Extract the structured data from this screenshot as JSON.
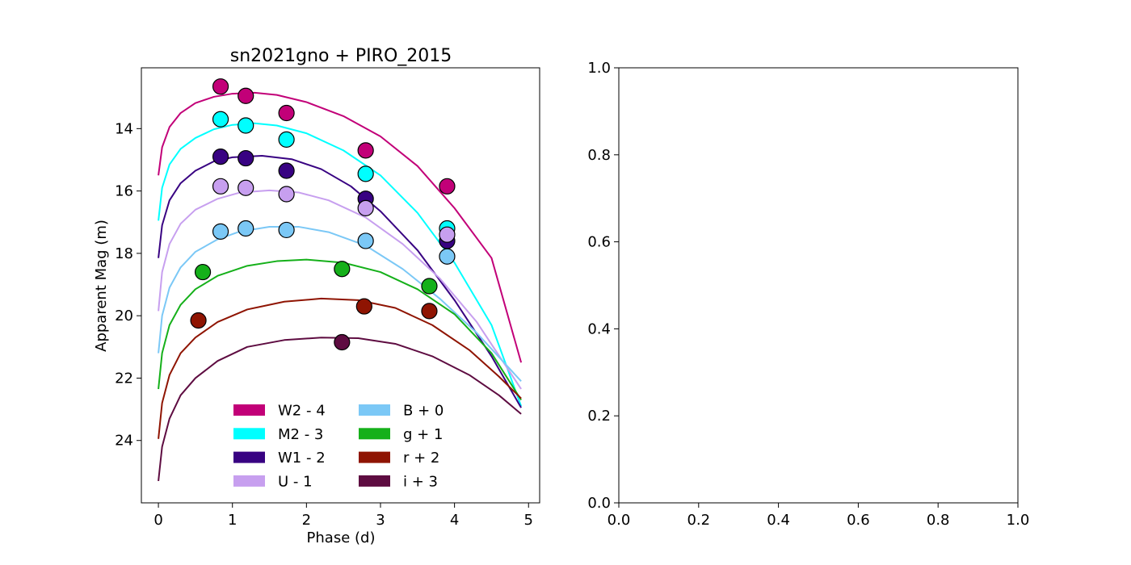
{
  "chart_data": [
    {
      "type": "line+scatter",
      "title": "sn2021gno + PIRO_2015",
      "xlabel": "Phase (d)",
      "ylabel": "Apparent Mag (m)",
      "xlim": [
        -0.23,
        5.15
      ],
      "ylim": [
        26.0,
        12.05
      ],
      "y_inverted": true,
      "xticks": [
        0,
        1,
        2,
        3,
        4,
        5
      ],
      "yticks": [
        14,
        16,
        18,
        20,
        22,
        24
      ],
      "grid": false,
      "legend_position": "lower-center",
      "legend_columns": 2,
      "series": [
        {
          "name": "W2 - 4",
          "color": "#c20078",
          "points": [
            [
              0.84,
              12.65
            ],
            [
              1.18,
              12.95
            ],
            [
              1.73,
              13.5
            ],
            [
              2.8,
              14.7
            ],
            [
              3.9,
              15.85
            ]
          ],
          "curve": [
            [
              0.0,
              15.5
            ],
            [
              0.05,
              14.6
            ],
            [
              0.15,
              13.95
            ],
            [
              0.3,
              13.5
            ],
            [
              0.5,
              13.18
            ],
            [
              0.75,
              12.98
            ],
            [
              1.0,
              12.88
            ],
            [
              1.3,
              12.85
            ],
            [
              1.6,
              12.92
            ],
            [
              2.0,
              13.15
            ],
            [
              2.5,
              13.6
            ],
            [
              3.0,
              14.25
            ],
            [
              3.5,
              15.2
            ],
            [
              4.0,
              16.55
            ],
            [
              4.5,
              18.15
            ],
            [
              4.9,
              21.5
            ]
          ]
        },
        {
          "name": "M2 - 3",
          "color": "#00ffff",
          "points": [
            [
              0.84,
              13.7
            ],
            [
              1.18,
              13.9
            ],
            [
              1.73,
              14.35
            ],
            [
              2.8,
              15.45
            ],
            [
              3.9,
              17.2
            ]
          ],
          "curve": [
            [
              0.0,
              16.95
            ],
            [
              0.05,
              15.9
            ],
            [
              0.15,
              15.15
            ],
            [
              0.3,
              14.65
            ],
            [
              0.5,
              14.3
            ],
            [
              0.75,
              14.02
            ],
            [
              1.0,
              13.88
            ],
            [
              1.3,
              13.83
            ],
            [
              1.6,
              13.9
            ],
            [
              2.0,
              14.15
            ],
            [
              2.5,
              14.7
            ],
            [
              3.0,
              15.5
            ],
            [
              3.5,
              16.7
            ],
            [
              4.0,
              18.3
            ],
            [
              4.5,
              20.3
            ],
            [
              4.9,
              22.9
            ]
          ]
        },
        {
          "name": "W1 - 2",
          "color": "#380282",
          "points": [
            [
              0.84,
              14.9
            ],
            [
              1.18,
              14.95
            ],
            [
              1.73,
              15.35
            ],
            [
              2.8,
              16.25
            ],
            [
              3.9,
              17.6
            ]
          ],
          "curve": [
            [
              0.0,
              18.15
            ],
            [
              0.05,
              17.1
            ],
            [
              0.15,
              16.3
            ],
            [
              0.3,
              15.75
            ],
            [
              0.5,
              15.35
            ],
            [
              0.75,
              15.05
            ],
            [
              1.0,
              14.92
            ],
            [
              1.4,
              14.87
            ],
            [
              1.8,
              14.98
            ],
            [
              2.2,
              15.3
            ],
            [
              2.6,
              15.85
            ],
            [
              3.0,
              16.65
            ],
            [
              3.5,
              17.9
            ],
            [
              4.0,
              19.5
            ],
            [
              4.5,
              21.3
            ],
            [
              4.9,
              22.95
            ]
          ]
        },
        {
          "name": "U - 1",
          "color": "#c79fef",
          "points": [
            [
              0.84,
              15.85
            ],
            [
              1.18,
              15.9
            ],
            [
              1.73,
              16.1
            ],
            [
              2.8,
              16.55
            ],
            [
              3.9,
              17.4
            ]
          ],
          "curve": [
            [
              0.0,
              19.85
            ],
            [
              0.05,
              18.6
            ],
            [
              0.15,
              17.7
            ],
            [
              0.3,
              17.05
            ],
            [
              0.5,
              16.6
            ],
            [
              0.8,
              16.25
            ],
            [
              1.1,
              16.05
            ],
            [
              1.5,
              15.98
            ],
            [
              1.9,
              16.05
            ],
            [
              2.3,
              16.3
            ],
            [
              2.8,
              16.85
            ],
            [
              3.3,
              17.7
            ],
            [
              3.8,
              18.8
            ],
            [
              4.3,
              20.2
            ],
            [
              4.9,
              22.35
            ]
          ]
        },
        {
          "name": "B + 0",
          "color": "#7bc8f6",
          "points": [
            [
              0.84,
              17.3
            ],
            [
              1.18,
              17.2
            ],
            [
              1.73,
              17.25
            ],
            [
              2.8,
              17.6
            ],
            [
              3.9,
              18.1
            ]
          ],
          "curve": [
            [
              0.0,
              21.2
            ],
            [
              0.05,
              20.0
            ],
            [
              0.15,
              19.1
            ],
            [
              0.3,
              18.45
            ],
            [
              0.5,
              17.95
            ],
            [
              0.8,
              17.55
            ],
            [
              1.1,
              17.3
            ],
            [
              1.5,
              17.15
            ],
            [
              1.9,
              17.15
            ],
            [
              2.3,
              17.32
            ],
            [
              2.8,
              17.75
            ],
            [
              3.3,
              18.5
            ],
            [
              3.8,
              19.45
            ],
            [
              4.3,
              20.55
            ],
            [
              4.9,
              22.1
            ]
          ]
        },
        {
          "name": "g + 1",
          "color": "#15b01a",
          "points": [
            [
              0.6,
              18.6
            ],
            [
              2.48,
              18.5
            ],
            [
              3.66,
              19.05
            ]
          ],
          "curve": [
            [
              0.0,
              22.35
            ],
            [
              0.05,
              21.2
            ],
            [
              0.15,
              20.3
            ],
            [
              0.3,
              19.65
            ],
            [
              0.5,
              19.15
            ],
            [
              0.8,
              18.72
            ],
            [
              1.2,
              18.4
            ],
            [
              1.6,
              18.25
            ],
            [
              2.0,
              18.2
            ],
            [
              2.5,
              18.3
            ],
            [
              3.0,
              18.6
            ],
            [
              3.5,
              19.15
            ],
            [
              4.0,
              19.95
            ],
            [
              4.5,
              21.2
            ],
            [
              4.9,
              22.7
            ]
          ]
        },
        {
          "name": "r + 2",
          "color": "#8f1402",
          "points": [
            [
              0.54,
              20.15
            ],
            [
              2.78,
              19.7
            ],
            [
              3.66,
              19.85
            ]
          ],
          "curve": [
            [
              0.0,
              23.95
            ],
            [
              0.05,
              22.8
            ],
            [
              0.15,
              21.9
            ],
            [
              0.3,
              21.2
            ],
            [
              0.5,
              20.7
            ],
            [
              0.8,
              20.2
            ],
            [
              1.2,
              19.8
            ],
            [
              1.7,
              19.55
            ],
            [
              2.2,
              19.45
            ],
            [
              2.7,
              19.5
            ],
            [
              3.2,
              19.75
            ],
            [
              3.7,
              20.3
            ],
            [
              4.2,
              21.1
            ],
            [
              4.6,
              21.95
            ],
            [
              4.9,
              22.65
            ]
          ]
        },
        {
          "name": "i + 3",
          "color": "#5e0c41",
          "points": [
            [
              2.48,
              20.85
            ]
          ],
          "curve": [
            [
              0.0,
              25.3
            ],
            [
              0.05,
              24.2
            ],
            [
              0.15,
              23.3
            ],
            [
              0.3,
              22.55
            ],
            [
              0.5,
              22.0
            ],
            [
              0.8,
              21.45
            ],
            [
              1.2,
              21.0
            ],
            [
              1.7,
              20.78
            ],
            [
              2.2,
              20.7
            ],
            [
              2.7,
              20.72
            ],
            [
              3.2,
              20.9
            ],
            [
              3.7,
              21.3
            ],
            [
              4.2,
              21.9
            ],
            [
              4.6,
              22.55
            ],
            [
              4.9,
              23.15
            ]
          ]
        }
      ]
    },
    {
      "type": "line",
      "title": "",
      "xlabel": "",
      "ylabel": "",
      "xlim": [
        0.0,
        1.0
      ],
      "ylim": [
        0.0,
        1.0
      ],
      "xticks": [
        0.0,
        0.2,
        0.4,
        0.6,
        0.8,
        1.0
      ],
      "yticks": [
        0.0,
        0.2,
        0.4,
        0.6,
        0.8,
        1.0
      ],
      "grid": false,
      "series": []
    }
  ]
}
